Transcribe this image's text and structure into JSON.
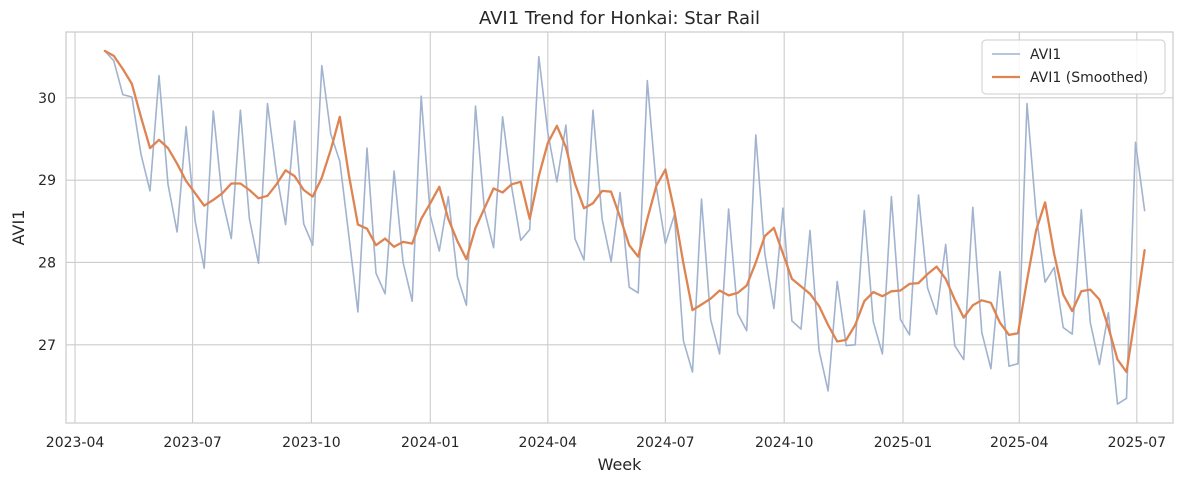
{
  "chart_data": {
    "type": "line",
    "title": "AVI1 Trend for Honkai: Star Rail",
    "xlabel": "Week",
    "ylabel": "AVI1",
    "x_axis": {
      "type": "date",
      "range": [
        "2023-03-25",
        "2025-07-29"
      ],
      "ticks": [
        {
          "date": "2023-04-01",
          "label": "2023-04"
        },
        {
          "date": "2023-07-01",
          "label": "2023-07"
        },
        {
          "date": "2023-10-01",
          "label": "2023-10"
        },
        {
          "date": "2024-01-01",
          "label": "2024-01"
        },
        {
          "date": "2024-04-01",
          "label": "2024-04"
        },
        {
          "date": "2024-07-01",
          "label": "2024-07"
        },
        {
          "date": "2024-10-01",
          "label": "2024-10"
        },
        {
          "date": "2025-01-01",
          "label": "2025-01"
        },
        {
          "date": "2025-04-01",
          "label": "2025-04"
        },
        {
          "date": "2025-07-01",
          "label": "2025-07"
        }
      ]
    },
    "y_axis": {
      "range": [
        26.05,
        30.8
      ],
      "ticks": [
        27,
        28,
        29,
        30
      ]
    },
    "grid": true,
    "legend_position": "top-right",
    "x": [
      "2023-04-24",
      "2023-05-01",
      "2023-05-08",
      "2023-05-15",
      "2023-05-22",
      "2023-05-29",
      "2023-06-05",
      "2023-06-12",
      "2023-06-19",
      "2023-06-26",
      "2023-07-03",
      "2023-07-10",
      "2023-07-17",
      "2023-07-24",
      "2023-07-31",
      "2023-08-07",
      "2023-08-14",
      "2023-08-21",
      "2023-08-28",
      "2023-09-04",
      "2023-09-11",
      "2023-09-18",
      "2023-09-25",
      "2023-10-02",
      "2023-10-09",
      "2023-10-16",
      "2023-10-23",
      "2023-10-30",
      "2023-11-06",
      "2023-11-13",
      "2023-11-20",
      "2023-11-27",
      "2023-12-04",
      "2023-12-11",
      "2023-12-18",
      "2023-12-25",
      "2024-01-01",
      "2024-01-08",
      "2024-01-15",
      "2024-01-22",
      "2024-01-29",
      "2024-02-05",
      "2024-02-12",
      "2024-02-19",
      "2024-02-26",
      "2024-03-04",
      "2024-03-11",
      "2024-03-18",
      "2024-03-25",
      "2024-04-01",
      "2024-04-08",
      "2024-04-15",
      "2024-04-22",
      "2024-04-29",
      "2024-05-06",
      "2024-05-13",
      "2024-05-20",
      "2024-05-27",
      "2024-06-03",
      "2024-06-10",
      "2024-06-17",
      "2024-06-24",
      "2024-07-01",
      "2024-07-08",
      "2024-07-15",
      "2024-07-22",
      "2024-07-29",
      "2024-08-05",
      "2024-08-12",
      "2024-08-19",
      "2024-08-26",
      "2024-09-02",
      "2024-09-09",
      "2024-09-16",
      "2024-09-23",
      "2024-09-30",
      "2024-10-07",
      "2024-10-14",
      "2024-10-21",
      "2024-10-28",
      "2024-11-04",
      "2024-11-11",
      "2024-11-18",
      "2024-11-25",
      "2024-12-02",
      "2024-12-09",
      "2024-12-16",
      "2024-12-23",
      "2024-12-30",
      "2025-01-06",
      "2025-01-13",
      "2025-01-20",
      "2025-01-27",
      "2025-02-03",
      "2025-02-10",
      "2025-02-17",
      "2025-02-24",
      "2025-03-03",
      "2025-03-10",
      "2025-03-17",
      "2025-03-24",
      "2025-03-31",
      "2025-04-07",
      "2025-04-14",
      "2025-04-21",
      "2025-04-28",
      "2025-05-05",
      "2025-05-12",
      "2025-05-19",
      "2025-05-26",
      "2025-06-02",
      "2025-06-09",
      "2025-06-16",
      "2025-06-23",
      "2025-06-30",
      "2025-07-07"
    ],
    "series": [
      {
        "name": "AVI1",
        "color": "#a1b3cf",
        "values": [
          30.57,
          30.45,
          30.04,
          30.01,
          29.32,
          28.87,
          30.27,
          28.95,
          28.37,
          29.65,
          28.5,
          27.93,
          29.84,
          28.77,
          28.29,
          29.85,
          28.53,
          27.99,
          29.93,
          29.08,
          28.46,
          29.72,
          28.47,
          28.21,
          30.39,
          29.56,
          29.23,
          28.32,
          27.4,
          29.39,
          27.87,
          27.62,
          29.11,
          28.0,
          27.53,
          30.02,
          28.57,
          28.14,
          28.8,
          27.83,
          27.48,
          29.9,
          28.63,
          28.18,
          29.77,
          28.92,
          28.27,
          28.4,
          30.5,
          29.58,
          28.98,
          29.67,
          28.29,
          28.03,
          29.85,
          28.53,
          28.01,
          28.85,
          27.7,
          27.63,
          30.21,
          28.92,
          28.23,
          28.58,
          27.05,
          26.67,
          28.77,
          27.31,
          26.89,
          28.65,
          27.38,
          27.17,
          29.55,
          28.11,
          27.44,
          28.66,
          27.29,
          27.19,
          28.39,
          26.93,
          26.44,
          27.77,
          26.99,
          27.0,
          28.63,
          27.28,
          26.89,
          28.8,
          27.31,
          27.12,
          28.82,
          27.69,
          27.37,
          28.22,
          26.99,
          26.82,
          28.67,
          27.15,
          26.71,
          27.89,
          26.74,
          26.77,
          29.93,
          28.59,
          27.76,
          27.94,
          27.21,
          27.13,
          28.64,
          27.27,
          26.76,
          27.39,
          26.28,
          26.35,
          29.46,
          28.63
        ]
      },
      {
        "name": "AVI1 (Smoothed)",
        "color": "#dd8452",
        "values": [
          30.57,
          30.51,
          30.35,
          30.17,
          29.77,
          29.39,
          29.49,
          29.39,
          29.2,
          28.99,
          28.84,
          28.69,
          28.76,
          28.84,
          28.96,
          28.96,
          28.88,
          28.78,
          28.81,
          28.95,
          29.12,
          29.05,
          28.88,
          28.8,
          29.03,
          29.37,
          29.77,
          29.06,
          28.46,
          28.41,
          28.21,
          28.29,
          28.19,
          28.25,
          28.23,
          28.53,
          28.72,
          28.92,
          28.53,
          28.26,
          28.04,
          28.42,
          28.66,
          28.9,
          28.85,
          28.95,
          28.98,
          28.53,
          29.05,
          29.45,
          29.66,
          29.4,
          28.96,
          28.66,
          28.72,
          28.87,
          28.86,
          28.55,
          28.21,
          28.07,
          28.53,
          28.93,
          29.13,
          28.62,
          27.99,
          27.42,
          27.49,
          27.56,
          27.66,
          27.6,
          27.63,
          27.72,
          28.0,
          28.32,
          28.42,
          28.11,
          27.8,
          27.71,
          27.62,
          27.47,
          27.24,
          27.04,
          27.06,
          27.24,
          27.53,
          27.64,
          27.59,
          27.65,
          27.66,
          27.74,
          27.75,
          27.86,
          27.95,
          27.8,
          27.55,
          27.33,
          27.48,
          27.54,
          27.51,
          27.27,
          27.12,
          27.14,
          27.78,
          28.39,
          28.73,
          28.1,
          27.61,
          27.41,
          27.65,
          27.67,
          27.55,
          27.21,
          26.82,
          26.67,
          27.37,
          28.15
        ]
      }
    ]
  }
}
